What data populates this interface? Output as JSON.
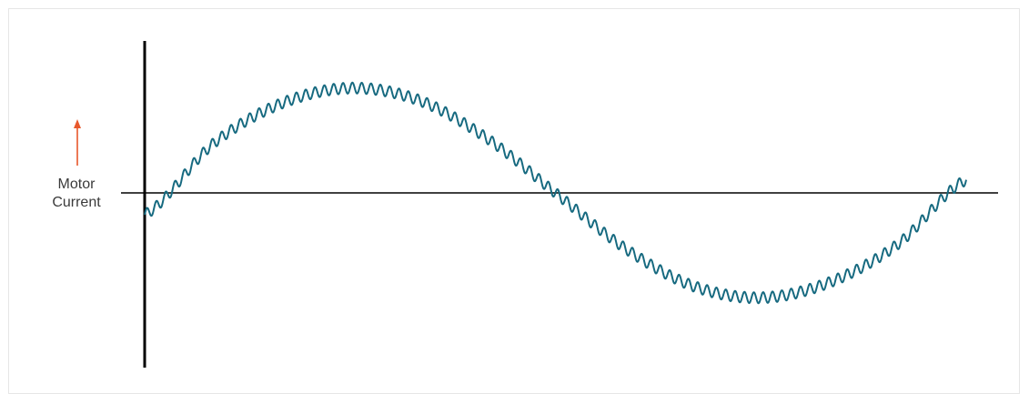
{
  "chart_data": {
    "type": "line",
    "ylabel_lines": [
      "Motor",
      "Current"
    ],
    "colors": {
      "signal": "#176a80",
      "axis": "#000000",
      "arrow": "#e8582c"
    },
    "series": [
      {
        "x": [
          0,
          30,
          60,
          90,
          120,
          150,
          180,
          210,
          240,
          270,
          300,
          330,
          360
        ],
        "values": [
          -0.2,
          0.45,
          0.82,
          0.96,
          0.85,
          0.5,
          0.0,
          -0.5,
          -0.85,
          -0.96,
          -0.82,
          -0.47,
          0.12
        ],
        "ripple": {
          "cycles": 88,
          "amplitude": 0.05
        }
      }
    ],
    "ylim": [
      -1.6,
      1.5
    ],
    "grid": false,
    "legend": false
  }
}
